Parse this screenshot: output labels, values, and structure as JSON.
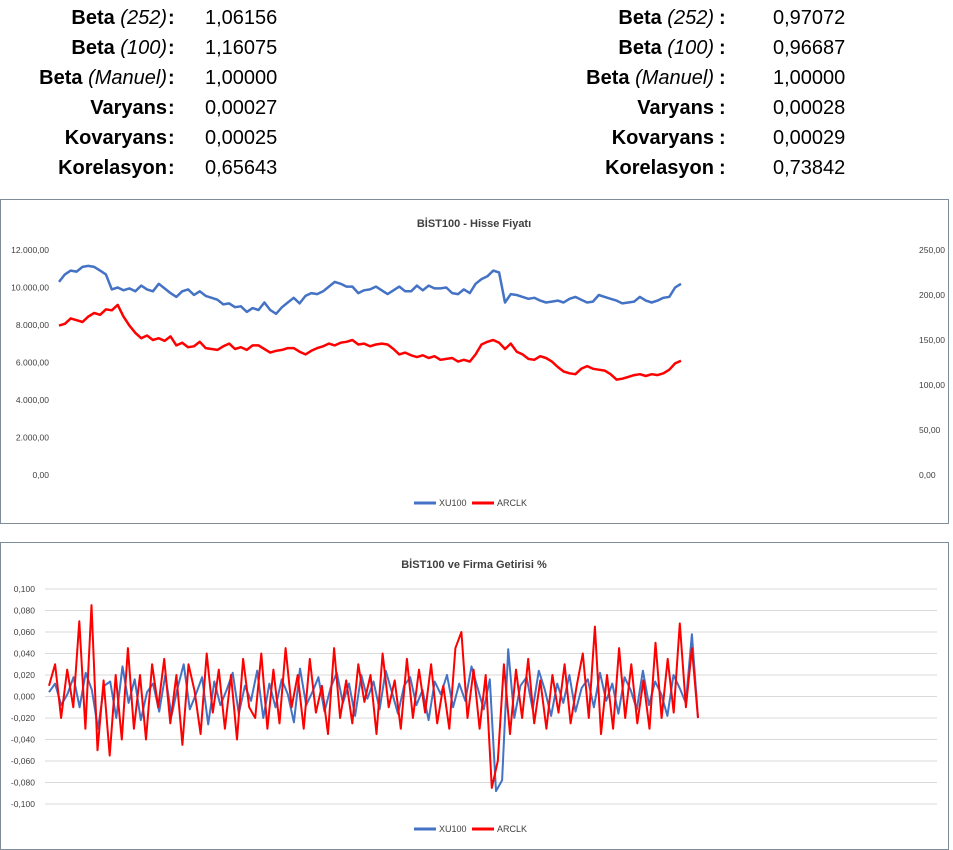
{
  "stats_left": [
    {
      "label_bold": "Beta",
      "label_italic": "(252)",
      "colon": ":",
      "value": "1,06156"
    },
    {
      "label_bold": "Beta",
      "label_italic": "(100)",
      "colon": ":",
      "value": "1,16075"
    },
    {
      "label_bold": "Beta",
      "label_italic": "(Manuel)",
      "colon": ":",
      "value": "1,00000"
    },
    {
      "label_bold": "Varyans",
      "label_italic": "",
      "colon": ":",
      "value": "0,00027"
    },
    {
      "label_bold": "Kovaryans",
      "label_italic": "",
      "colon": ":",
      "value": "0,00025"
    },
    {
      "label_bold": "Korelasyon",
      "label_italic": "",
      "colon": ":",
      "value": "0,65643"
    }
  ],
  "stats_right": [
    {
      "label_bold": "Beta",
      "label_italic": "(252)",
      "colon": ":",
      "value": "0,97072"
    },
    {
      "label_bold": "Beta",
      "label_italic": "(100)",
      "colon": ":",
      "value": "0,96687"
    },
    {
      "label_bold": "Beta",
      "label_italic": "(Manuel)",
      "colon": ":",
      "value": "1,00000"
    },
    {
      "label_bold": "Varyans",
      "label_italic": "",
      "colon": ":",
      "value": "0,00028"
    },
    {
      "label_bold": "Kovaryans",
      "label_italic": "",
      "colon": ":",
      "value": "0,00029"
    },
    {
      "label_bold": "Korelasyon",
      "label_italic": "",
      "colon": ":",
      "value": "0,73842"
    }
  ],
  "colors": {
    "xu100": "#4472c4",
    "arclk": "#ff0000",
    "grid": "#d9d9d9",
    "border": "#7f8c99"
  },
  "chart_data": [
    {
      "type": "line",
      "title": "BİST100 - Hisse Fiyatı",
      "ylim": [
        0,
        12000
      ],
      "y2lim": [
        0,
        250
      ],
      "yticks": [
        "0,00",
        "2.000,00",
        "4.000,00",
        "6.000,00",
        "8.000,00",
        "10.000,00",
        "12.000,00"
      ],
      "y2ticks": [
        "0,00",
        "50,00",
        "100,00",
        "150,00",
        "200,00",
        "250,00"
      ],
      "grid": false,
      "legend_position": "bottom",
      "series": [
        {
          "name": "XU100",
          "axis": "left",
          "values": [
            10300,
            10700,
            10900,
            10850,
            11100,
            11150,
            11100,
            10900,
            10700,
            9900,
            10000,
            9850,
            9950,
            9800,
            10100,
            9900,
            9800,
            10200,
            9950,
            9700,
            9500,
            9800,
            9900,
            9600,
            9800,
            9550,
            9450,
            9350,
            9100,
            9150,
            8950,
            9000,
            8700,
            8900,
            8800,
            9200,
            8800,
            8600,
            8950,
            9200,
            9450,
            9150,
            9550,
            9700,
            9650,
            9800,
            10050,
            10300,
            10200,
            10050,
            10050,
            9700,
            9850,
            9900,
            10050,
            9850,
            9650,
            9850,
            10050,
            9800,
            9800,
            10100,
            9850,
            10100,
            9950,
            9950,
            10000,
            9700,
            9650,
            9900,
            9700,
            10200,
            10450,
            10600,
            10900,
            10800,
            9200,
            9650,
            9600,
            9500,
            9400,
            9450,
            9300,
            9200,
            9250,
            9300,
            9200,
            9400,
            9500,
            9350,
            9200,
            9250,
            9600,
            9500,
            9400,
            9300,
            9150,
            9200,
            9250,
            9500,
            9300,
            9200,
            9300,
            9450,
            9500,
            10000,
            10200
          ]
        },
        {
          "name": "ARCLK",
          "axis": "right",
          "values": [
            166,
            168,
            174,
            172,
            170,
            176,
            180,
            178,
            184,
            183,
            189,
            176,
            166,
            158,
            152,
            155,
            150,
            152,
            149,
            154,
            144,
            147,
            142,
            143,
            148,
            141,
            140,
            139,
            143,
            146,
            140,
            142,
            139,
            144,
            144,
            140,
            136,
            138,
            139,
            141,
            141,
            137,
            134,
            138,
            141,
            143,
            146,
            144,
            147,
            148,
            150,
            145,
            146,
            143,
            145,
            146,
            145,
            140,
            134,
            136,
            133,
            131,
            133,
            130,
            132,
            128,
            129,
            130,
            126,
            128,
            126,
            134,
            145,
            148,
            150,
            147,
            140,
            146,
            137,
            134,
            129,
            128,
            132,
            130,
            126,
            120,
            115,
            113,
            112,
            118,
            121,
            118,
            117,
            116,
            112,
            106,
            107,
            109,
            111,
            112,
            110,
            112,
            111,
            113,
            117,
            124,
            127
          ]
        }
      ]
    },
    {
      "type": "line",
      "title": "BİST100 ve Firma Getirisi %",
      "ylim": [
        -0.1,
        0.1
      ],
      "yticks": [
        "-0,100",
        "-0,080",
        "-0,060",
        "-0,040",
        "-0,020",
        "0,000",
        "0,020",
        "0,040",
        "0,060",
        "0,080",
        "0,100"
      ],
      "grid": true,
      "legend_position": "bottom",
      "series": [
        {
          "name": "XU100",
          "values": [
            0.004,
            0.012,
            -0.008,
            0.002,
            0.018,
            -0.01,
            0.022,
            0.006,
            -0.03,
            0.01,
            0.014,
            -0.02,
            0.028,
            -0.006,
            0.016,
            -0.022,
            0.004,
            0.012,
            -0.014,
            0.02,
            -0.018,
            0.008,
            0.03,
            -0.012,
            0.002,
            0.018,
            -0.026,
            0.014,
            -0.008,
            0.006,
            0.022,
            -0.016,
            0.01,
            -0.004,
            0.024,
            -0.02,
            0.012,
            -0.01,
            0.016,
            0.002,
            -0.024,
            0.026,
            -0.008,
            0.004,
            0.018,
            -0.014,
            0.008,
            0.022,
            -0.006,
            0.012,
            -0.018,
            0.02,
            -0.002,
            0.014,
            -0.012,
            0.024,
            0.004,
            -0.016,
            0.01,
            0.018,
            -0.008,
            0.006,
            -0.022,
            0.014,
            0.002,
            0.02,
            -0.01,
            0.012,
            -0.004,
            0.028,
            0.008,
            -0.012,
            0.016,
            -0.088,
            -0.078,
            0.044,
            -0.02,
            0.01,
            0.018,
            -0.012,
            0.024,
            0.006,
            -0.018,
            0.012,
            -0.006,
            0.02,
            -0.014,
            0.008,
            0.016,
            -0.01,
            0.022,
            -0.004,
            0.012,
            -0.016,
            0.018,
            0.006,
            -0.012,
            0.024,
            -0.008,
            0.014,
            0.002,
            -0.018,
            0.02,
            0.008,
            -0.006,
            0.058,
            -0.02
          ]
        },
        {
          "name": "ARCLK",
          "values": [
            0.01,
            0.03,
            -0.02,
            0.025,
            -0.01,
            0.07,
            -0.03,
            0.085,
            -0.05,
            0.015,
            -0.055,
            0.02,
            -0.04,
            0.045,
            -0.03,
            0.02,
            -0.04,
            0.03,
            -0.01,
            0.035,
            -0.025,
            0.02,
            -0.045,
            0.03,
            0.005,
            -0.035,
            0.04,
            -0.015,
            0.025,
            -0.03,
            0.02,
            -0.04,
            0.035,
            -0.01,
            -0.02,
            0.04,
            -0.03,
            0.025,
            -0.025,
            0.045,
            -0.01,
            0.02,
            -0.03,
            0.035,
            -0.015,
            0.01,
            -0.035,
            0.045,
            -0.02,
            0.015,
            -0.025,
            0.03,
            -0.005,
            0.02,
            -0.035,
            0.04,
            -0.01,
            0.015,
            -0.03,
            0.035,
            -0.02,
            0.025,
            -0.015,
            0.03,
            -0.025,
            0.01,
            -0.03,
            0.045,
            0.06,
            -0.02,
            0.025,
            -0.03,
            0.02,
            -0.085,
            -0.06,
            0.03,
            -0.035,
            0.025,
            -0.02,
            0.035,
            -0.025,
            0.015,
            -0.03,
            0.02,
            -0.015,
            0.03,
            -0.025,
            0.01,
            0.04,
            -0.02,
            0.065,
            -0.035,
            0.02,
            -0.03,
            0.045,
            -0.02,
            0.03,
            -0.025,
            0.015,
            -0.03,
            0.05,
            -0.02,
            0.035,
            -0.015,
            0.068,
            -0.01,
            0.045,
            -0.02
          ]
        }
      ]
    }
  ]
}
